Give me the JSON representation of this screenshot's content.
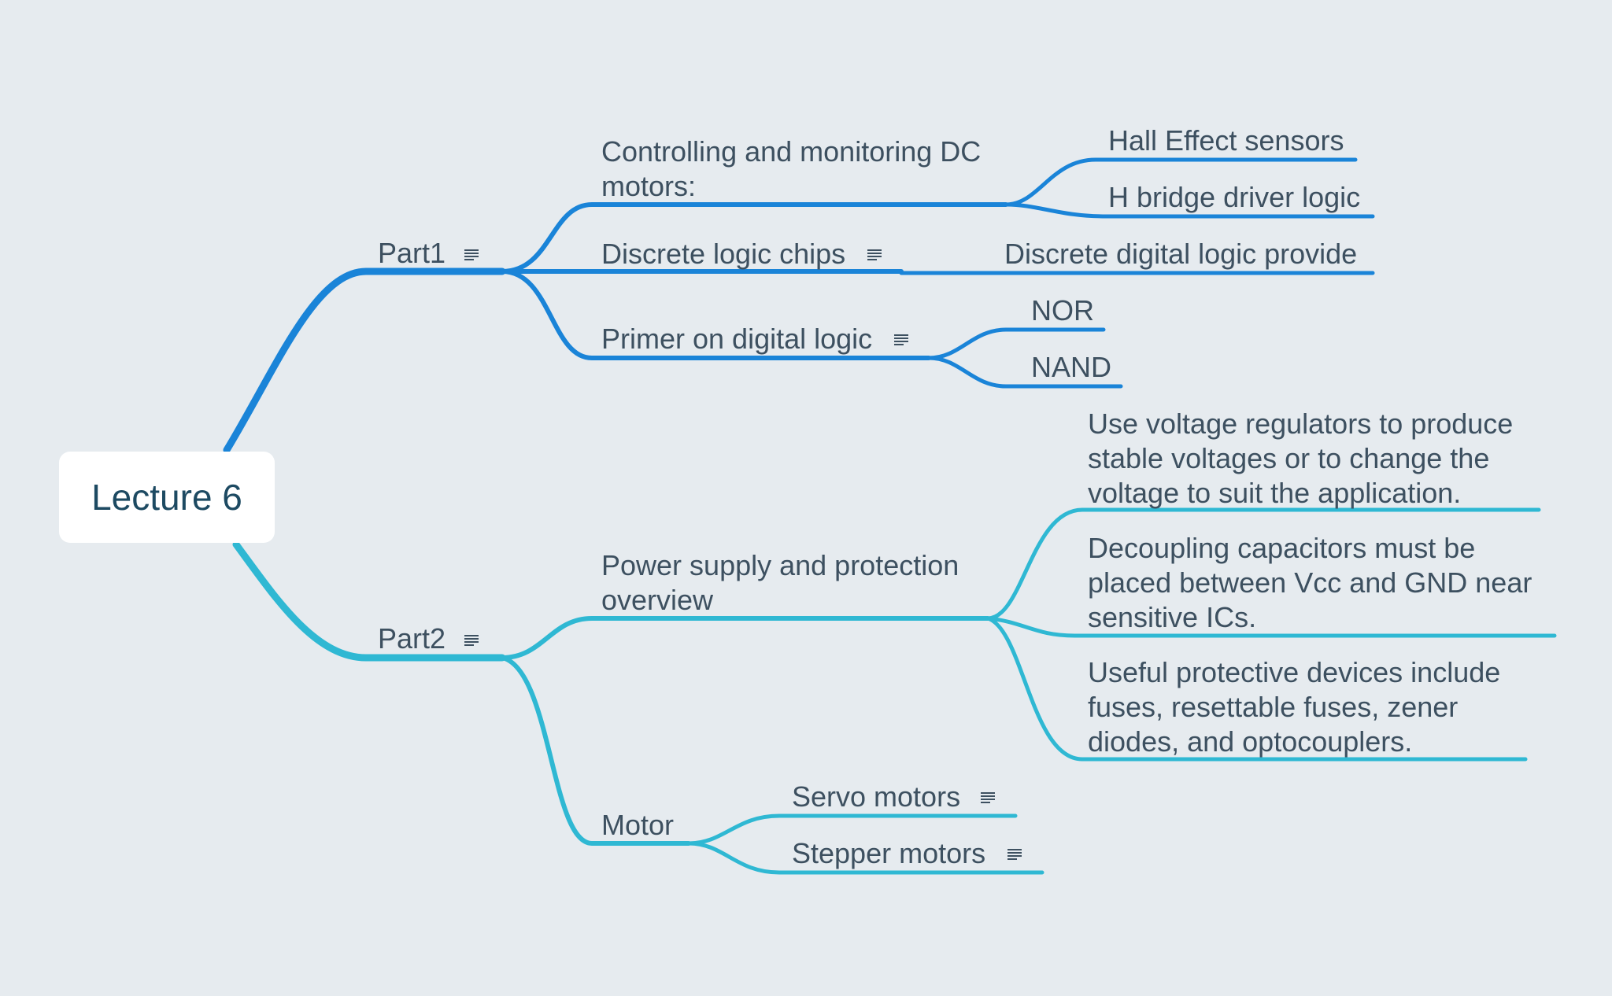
{
  "root": {
    "label": "Lecture 6"
  },
  "part1": {
    "label": "Part1",
    "has_note": true,
    "children": [
      {
        "label_lines": [
          "Controlling and monitoring DC",
          "motors:"
        ],
        "children": [
          "Hall Effect sensors",
          "H bridge driver logic"
        ]
      },
      {
        "label": "Discrete logic chips",
        "has_note": true,
        "children": [
          "Discrete digital logic provide"
        ]
      },
      {
        "label": "Primer on digital logic",
        "has_note": true,
        "children": [
          "NOR",
          "NAND"
        ]
      }
    ]
  },
  "part2": {
    "label": "Part2",
    "has_note": true,
    "children": [
      {
        "label_lines": [
          "Power supply and protection",
          "overview"
        ],
        "children": [
          [
            "Use voltage regulators to produce",
            "stable voltages or to change the",
            "voltage to suit the application."
          ],
          [
            "Decoupling capacitors must be",
            "placed between Vcc and GND near",
            "sensitive ICs."
          ],
          [
            "Useful protective devices include",
            "fuses, resettable fuses, zener",
            "diodes, and optocouplers."
          ]
        ]
      },
      {
        "label": "Motor",
        "children": [
          {
            "label": "Servo motors",
            "has_note": true
          },
          {
            "label": "Stepper motors",
            "has_note": true
          }
        ]
      }
    ]
  },
  "icons": {
    "note": "notes-icon"
  },
  "colors": {
    "background": "#e6ebef",
    "branch_part1": "#1a84d8",
    "branch_part2": "#2fb8d3",
    "text": "#3d5060",
    "root_text": "#1d4a62",
    "root_fill": "#ffffff"
  }
}
